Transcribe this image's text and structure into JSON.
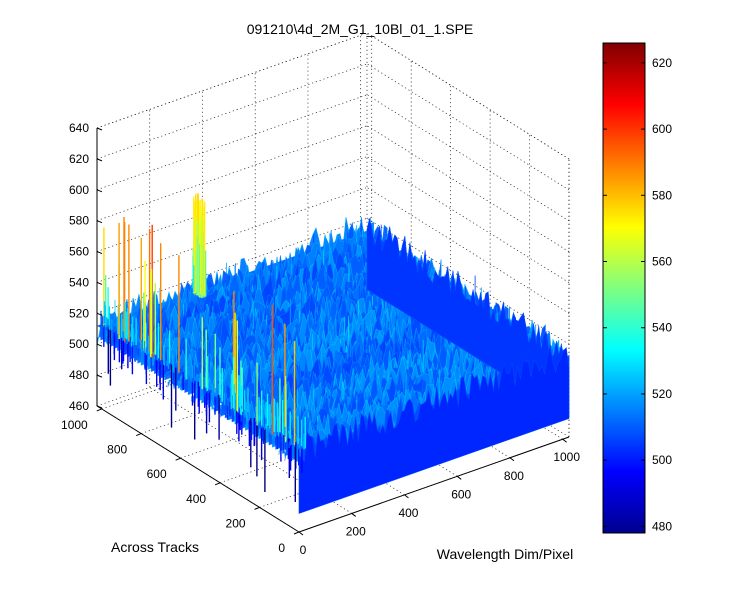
{
  "chart_data": {
    "type": "surface3d",
    "title": "091210\\4d_2M_G1_10Bl_01_1.SPE",
    "xlabel": "Wavelength Dim/Pixel",
    "ylabel": "Across Tracks",
    "zlabel": "",
    "xlim": [
      0,
      1024
    ],
    "ylim": [
      0,
      1024
    ],
    "zlim": [
      460,
      640
    ],
    "x_ticks": [
      "0",
      "200",
      "400",
      "600",
      "800",
      "1000"
    ],
    "y_ticks": [
      "0",
      "200",
      "400",
      "600",
      "800",
      "1000"
    ],
    "z_ticks": [
      "460",
      "480",
      "500",
      "520",
      "540",
      "560",
      "580",
      "600",
      "620",
      "640"
    ],
    "colormap": "jet",
    "colorbar": {
      "range": [
        478,
        626
      ],
      "ticks": [
        "480",
        "500",
        "520",
        "540",
        "560",
        "580",
        "600",
        "620"
      ]
    },
    "grid": true,
    "surface": {
      "baseline_level": 512,
      "noise_amplitude": 10,
      "edge_spikes_side": "across-tracks edge (wavelength ≈ 0)",
      "edge_spike_range": [
        470,
        600
      ],
      "far_corner_spike": 578
    }
  }
}
